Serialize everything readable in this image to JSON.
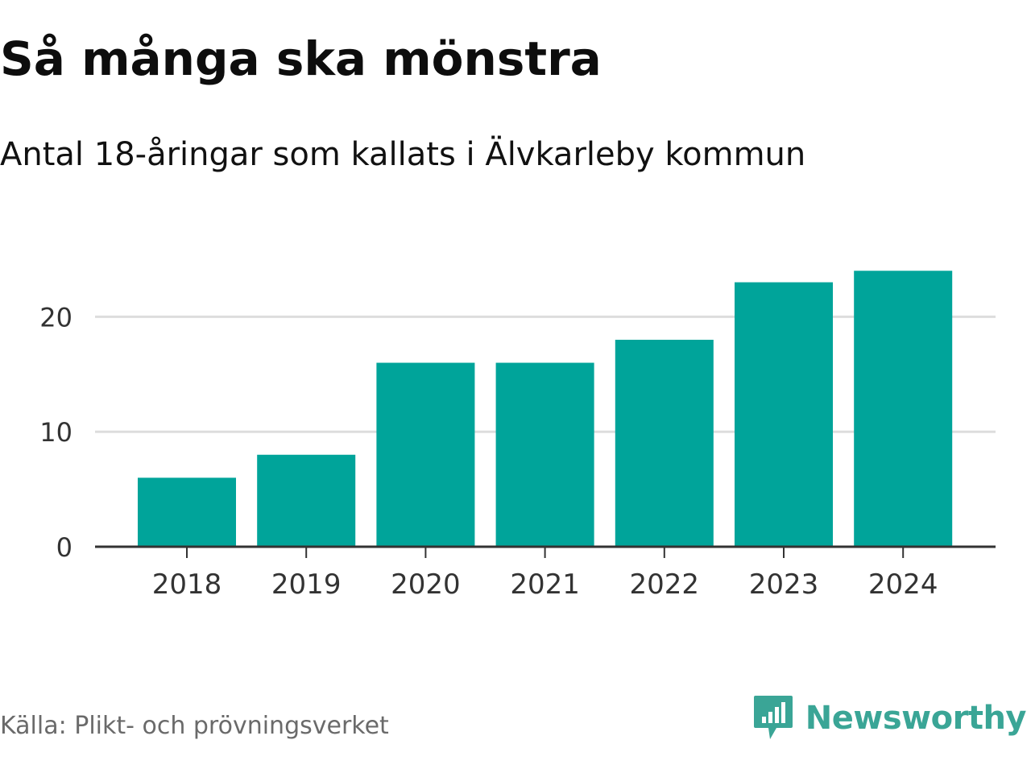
{
  "header": {
    "title": "Så många ska mönstra",
    "subtitle": "Antal 18-åringar som kallats i Älvkarleby kommun"
  },
  "footer": {
    "source": "Källa: Plikt- och prövningsverket",
    "brand": "Newsworthy",
    "brand_icon": "bar-chart-speech-bubble-icon"
  },
  "colors": {
    "bar": "#00a49a",
    "grid": "#dddddd",
    "axis": "#333333",
    "brand": "#3aa596"
  },
  "chart_data": {
    "type": "bar",
    "categories": [
      "2018",
      "2019",
      "2020",
      "2021",
      "2022",
      "2023",
      "2024"
    ],
    "values": [
      6,
      8,
      16,
      16,
      18,
      23,
      24
    ],
    "yticks": [
      0,
      10,
      20
    ],
    "ylim": [
      0,
      25
    ],
    "grid": true,
    "legend": false
  }
}
